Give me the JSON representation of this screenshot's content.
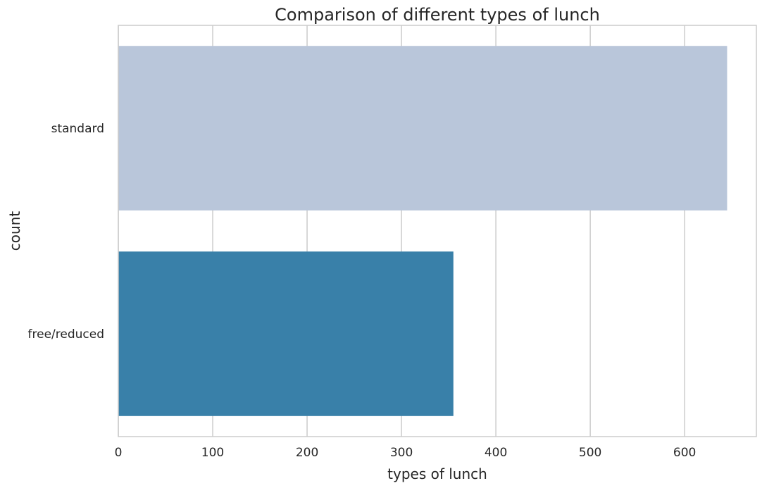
{
  "chart_data": {
    "type": "bar",
    "orientation": "horizontal",
    "title": "Comparison of different types of lunch",
    "xlabel": "types of lunch",
    "ylabel": "count",
    "categories": [
      "standard",
      "free/reduced"
    ],
    "values": [
      645,
      355
    ],
    "colors": [
      "#b9c6da",
      "#3980a9"
    ],
    "xlim": [
      0,
      676
    ],
    "xticks": [
      0,
      100,
      200,
      300,
      400,
      500,
      600
    ],
    "grid": true,
    "legend": "none"
  }
}
